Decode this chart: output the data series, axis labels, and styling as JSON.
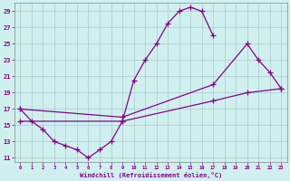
{
  "xlabel": "Windchill (Refroidissement éolien,°C)",
  "bg_color": "#cff0ee",
  "line_color": "#880088",
  "grid_color": "#aacccc",
  "xlim": [
    -0.5,
    23.5
  ],
  "ylim": [
    10.5,
    30.0
  ],
  "yticks": [
    11,
    13,
    15,
    17,
    19,
    21,
    23,
    25,
    27,
    29
  ],
  "xticks": [
    0,
    1,
    2,
    3,
    4,
    5,
    6,
    7,
    8,
    9,
    10,
    11,
    12,
    13,
    14,
    15,
    16,
    17,
    18,
    19,
    20,
    21,
    22,
    23
  ],
  "line1_x": [
    0,
    1,
    2,
    3,
    4,
    5,
    6,
    7,
    8,
    9,
    10,
    11,
    12,
    13,
    14,
    15,
    16,
    17
  ],
  "line1_y": [
    17,
    15.5,
    14.5,
    13,
    12.5,
    12,
    11,
    12,
    13,
    15.5,
    20.5,
    23,
    25,
    27.5,
    29,
    29.5,
    29,
    26
  ],
  "line2_x": [
    0,
    9,
    17,
    20,
    21,
    22,
    23
  ],
  "line2_y": [
    17,
    16,
    20,
    25,
    23,
    21.5,
    19.5
  ],
  "line3_x": [
    0,
    9,
    17,
    20,
    23
  ],
  "line3_y": [
    15.5,
    15.5,
    18,
    19,
    19.5
  ]
}
